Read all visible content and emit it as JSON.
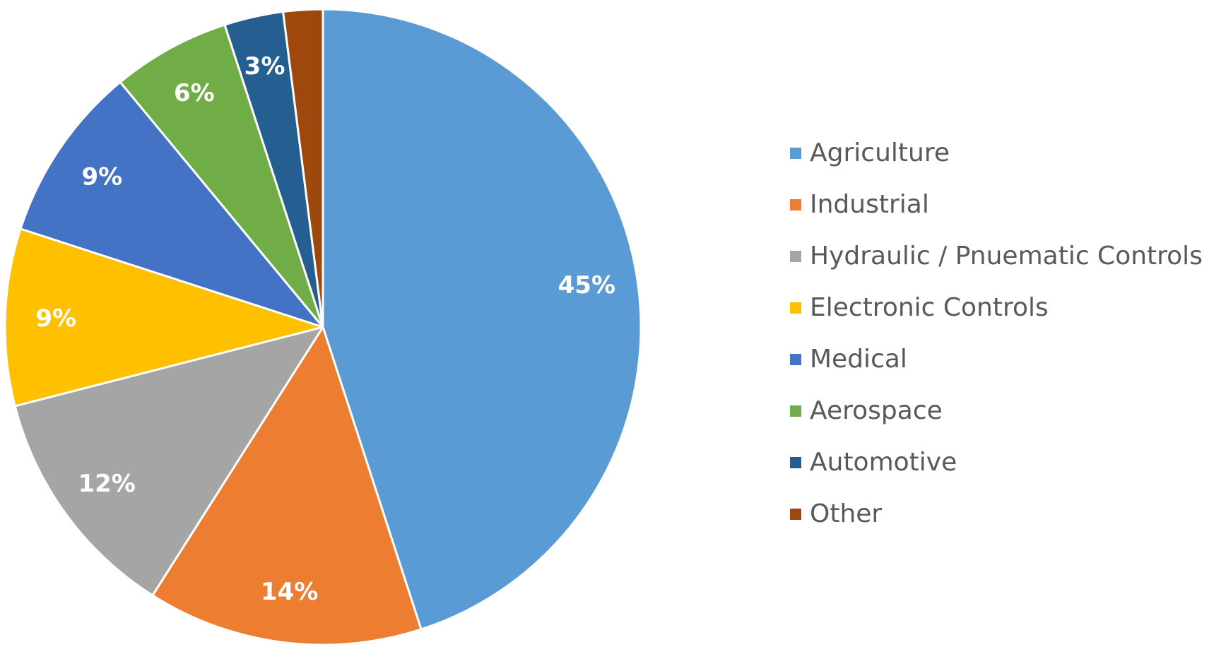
{
  "chart_data": {
    "type": "pie",
    "title": "",
    "categories": [
      "Agriculture",
      "Industrial",
      "Hydraulic / Pnuematic Controls",
      "Electronic Controls",
      "Medical",
      "Aerospace",
      "Automotive",
      "Other"
    ],
    "values": [
      45,
      14,
      12,
      9,
      9,
      6,
      3,
      2
    ],
    "data_labels": [
      "45%",
      "14%",
      "12%",
      "9%",
      "9%",
      "6%",
      "3%",
      ""
    ],
    "colors": [
      "#5B9BD5",
      "#ED7D31",
      "#A5A5A5",
      "#FFC000",
      "#4472C4",
      "#70AD47",
      "#255E91",
      "#9E480E"
    ],
    "start_angle": "12 o'clock",
    "direction": "clockwise",
    "legend_position": "right"
  }
}
